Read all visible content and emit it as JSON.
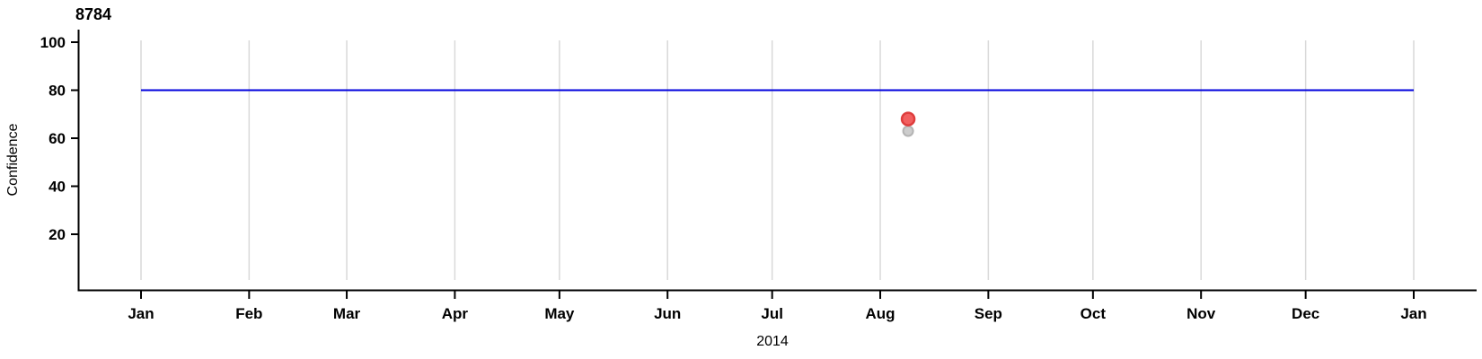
{
  "page": {
    "background": "#ffffff"
  },
  "chart_data": {
    "type": "scatter",
    "title": "8784",
    "ylabel": "Confidence",
    "xlabel": "2014",
    "x_axis": {
      "tick_labels": [
        "Jan",
        "Feb",
        "Mar",
        "Apr",
        "May",
        "Jun",
        "Jul",
        "Aug",
        "Sep",
        "Oct",
        "Nov",
        "Dec",
        "Jan"
      ],
      "tick_days": [
        0,
        31,
        59,
        90,
        120,
        151,
        181,
        212,
        243,
        273,
        304,
        334,
        365
      ],
      "range_days": [
        0,
        365
      ],
      "year": "2014"
    },
    "y_axis": {
      "ticks": [
        20,
        40,
        60,
        80,
        100
      ],
      "range": [
        0,
        105
      ]
    },
    "grid": {
      "vertical_monthly": true,
      "color": "#d9d9d9"
    },
    "reference_line": {
      "value": 80,
      "day_start": 0,
      "day_end": 365,
      "color": "#0202dd"
    },
    "points": [
      {
        "name": "data-point-gray",
        "series": "secondary",
        "day": 220,
        "date_est": "2014-08-09",
        "value": 63,
        "fill": "#cdcdcd",
        "stroke": "#b4b4b4",
        "radius": 5.5,
        "stroke_width": 2
      },
      {
        "name": "data-point-red",
        "series": "primary",
        "day": 220,
        "date_est": "2014-08-09",
        "value": 68,
        "fill": "#f25f5f",
        "stroke": "#de3d3d",
        "radius": 7,
        "stroke_width": 2.5
      }
    ],
    "axis_color": "#000000"
  }
}
